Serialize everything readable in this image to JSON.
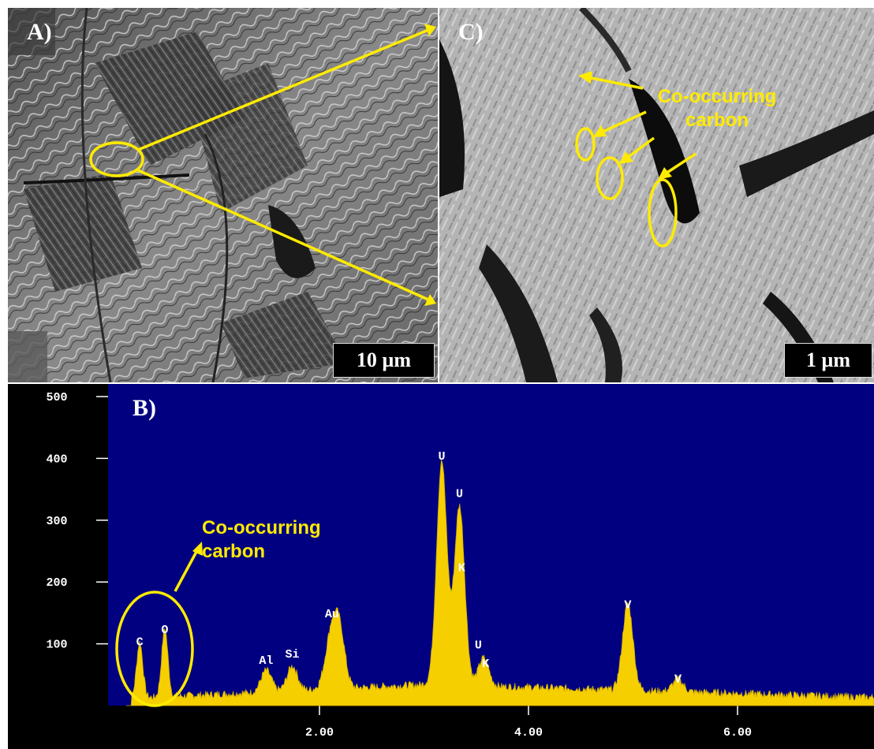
{
  "panels": {
    "a": {
      "label": "A)",
      "scale": "10 µm"
    },
    "c": {
      "label": "C)",
      "scale": "1 µm",
      "callout_line1": "Co-occurring",
      "callout_line2": "carbon"
    },
    "b": {
      "label": "B)",
      "callout_line1": "Co-occurring",
      "callout_line2": "carbon"
    }
  },
  "colors": {
    "spectrum_bg": "#000080",
    "spectrum_fill": "#f5cf00",
    "annotation": "#ffeb00"
  },
  "chart_data": {
    "type": "area",
    "ylim": [
      0,
      500
    ],
    "xlim": [
      0,
      7.3
    ],
    "y_ticks": [
      "500",
      "400",
      "300",
      "200",
      "100"
    ],
    "x_ticks": [
      "2.00",
      "4.00",
      "6.00"
    ],
    "peaks": [
      {
        "label": "C",
        "x": 0.28,
        "y": 90
      },
      {
        "label": "O",
        "x": 0.52,
        "y": 110
      },
      {
        "label": "Al",
        "x": 1.49,
        "y": 60
      },
      {
        "label": "Si",
        "x": 1.74,
        "y": 70
      },
      {
        "label": "Au",
        "x": 2.12,
        "y": 135
      },
      {
        "label": "U",
        "x": 3.17,
        "y": 390
      },
      {
        "label": "U",
        "x": 3.34,
        "y": 330
      },
      {
        "label": "K",
        "x": 3.36,
        "y": 210
      },
      {
        "label": "U",
        "x": 3.52,
        "y": 85
      },
      {
        "label": "K",
        "x": 3.59,
        "y": 55
      },
      {
        "label": "V",
        "x": 4.95,
        "y": 150
      },
      {
        "label": "V",
        "x": 5.43,
        "y": 30
      }
    ]
  }
}
